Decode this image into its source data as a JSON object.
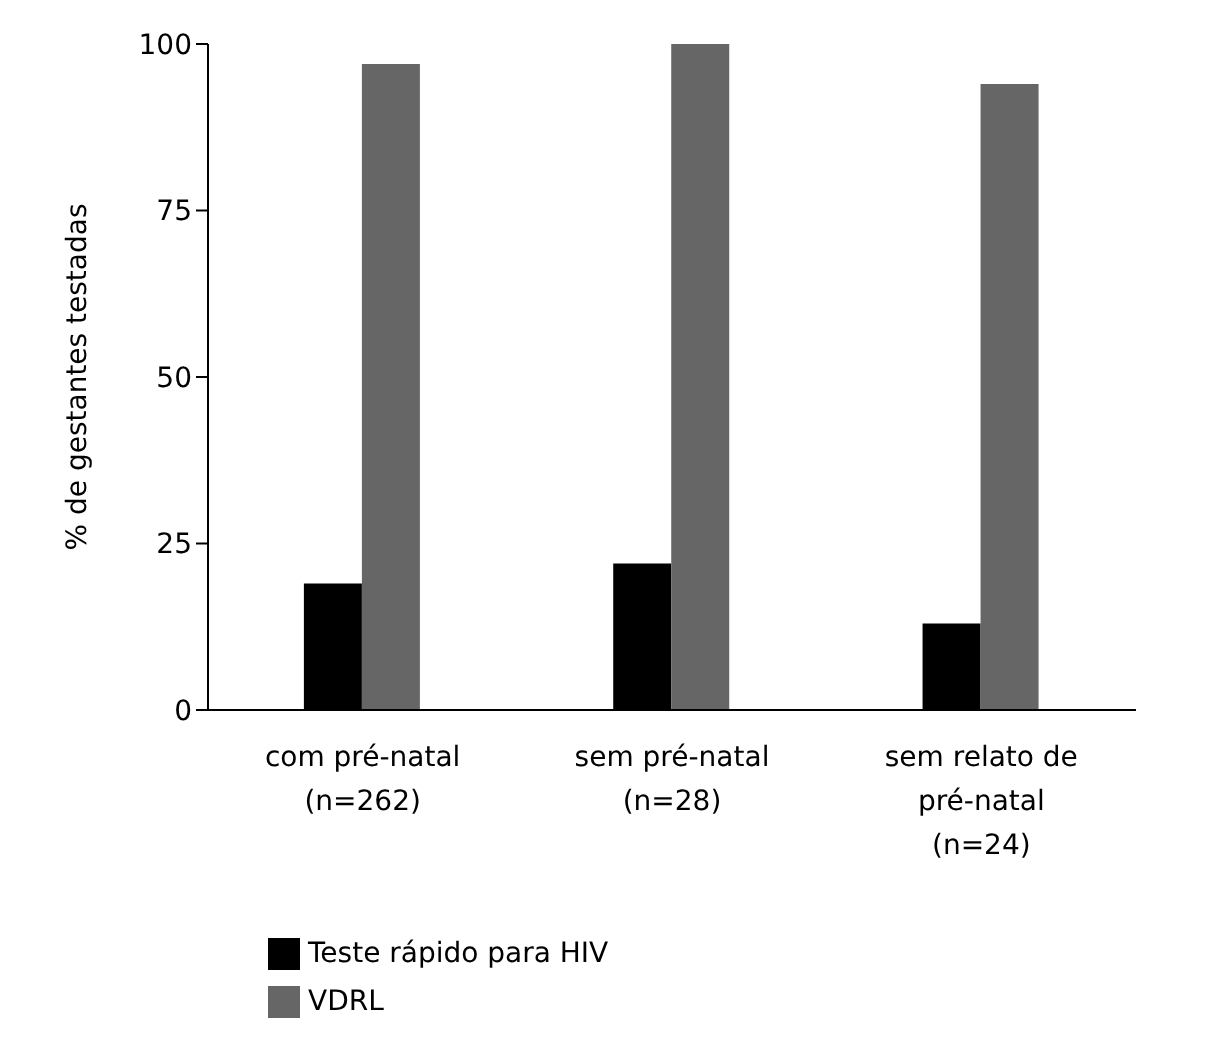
{
  "chart_data": {
    "type": "bar",
    "ylabel": "% de gestantes testadas",
    "categories": [
      "com pré-natal\n(n=262)",
      "sem pré-natal\n(n=28)",
      "sem relato de\npré-natal\n(n=24)"
    ],
    "series": [
      {
        "name": "Teste rápido para HIV",
        "color": "#000000",
        "values": [
          19,
          22,
          13
        ]
      },
      {
        "name": "VDRL",
        "color": "#666666",
        "values": [
          97,
          100,
          94
        ]
      }
    ],
    "ylim": [
      0,
      100
    ],
    "yticks": [
      0,
      25,
      50,
      75,
      100
    ],
    "grid": false,
    "legend": "bottom left"
  }
}
